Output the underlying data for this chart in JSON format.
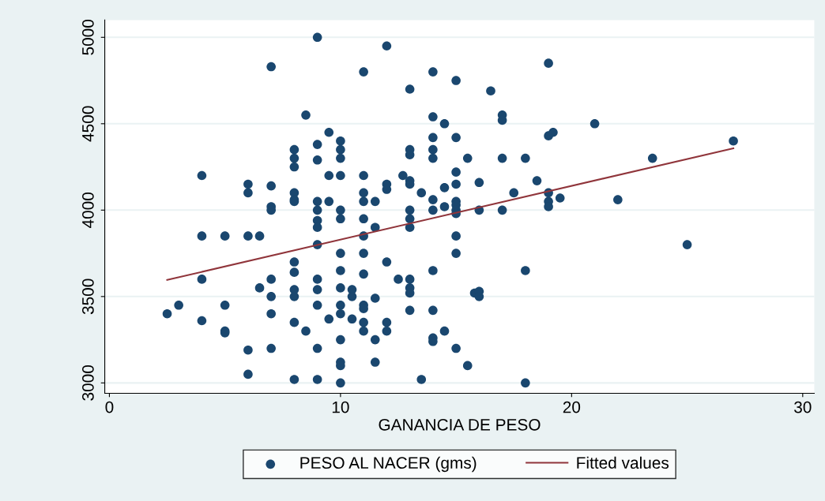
{
  "chart_data": {
    "type": "scatter",
    "xlabel": "GANANCIA DE PESO",
    "xlim": [
      -0.2,
      30.5
    ],
    "ylim": [
      2940,
      5100
    ],
    "xticks": [
      0,
      10,
      20,
      30
    ],
    "yticks": [
      3000,
      3500,
      4000,
      4500,
      5000
    ],
    "grid": "y",
    "legend": "bottom",
    "marker": "circle",
    "series": [
      {
        "name": "PESO AL NACER (gms)",
        "color": "#1a476f",
        "x": [
          2.5,
          3,
          4,
          4,
          4,
          4,
          5,
          5,
          5,
          5,
          6,
          6,
          6,
          6,
          6,
          6.5,
          6.5,
          7,
          7,
          7,
          7,
          7,
          7,
          7,
          7,
          8,
          8,
          8,
          8,
          8,
          8,
          8,
          8,
          8,
          8,
          8,
          8,
          8.5,
          8.5,
          9,
          9,
          9,
          9,
          9,
          9,
          9,
          9,
          9,
          9,
          9,
          9,
          9,
          9.5,
          9.5,
          9.5,
          9.5,
          10,
          10,
          10,
          10,
          10,
          10,
          10,
          10,
          10,
          10,
          10,
          10,
          10,
          10,
          10,
          10.5,
          10.5,
          10.5,
          11,
          11,
          11,
          11,
          11,
          11,
          11,
          11,
          11,
          11,
          11,
          11,
          11.5,
          11.5,
          11.5,
          11.5,
          11.5,
          12,
          12,
          12,
          12,
          12,
          12,
          12.5,
          12.7,
          13,
          13,
          13,
          13,
          13,
          13,
          13,
          13,
          13,
          13,
          13,
          13,
          13.5,
          13.5,
          14,
          14,
          14,
          14,
          14,
          14,
          14,
          14,
          14,
          14,
          14,
          14.5,
          14.5,
          14.5,
          14.5,
          15,
          15,
          15,
          15,
          15,
          15,
          15,
          15,
          15,
          15,
          15,
          15.5,
          15.5,
          15.8,
          16,
          16,
          16,
          16,
          16.5,
          17,
          17,
          17,
          17,
          17.5,
          18,
          18,
          18,
          18.5,
          19,
          19,
          19,
          19,
          19,
          19.2,
          19.5,
          21,
          22,
          23.5,
          25,
          27
        ],
        "values": [
          3400,
          3450,
          4200,
          3850,
          3600,
          3360,
          3850,
          3450,
          3300,
          3290,
          4150,
          4100,
          3850,
          3190,
          3050,
          3850,
          3550,
          4830,
          4140,
          4020,
          4000,
          3600,
          3500,
          3400,
          3200,
          4350,
          4300,
          4250,
          4100,
          4060,
          4050,
          3700,
          3640,
          3540,
          3500,
          3350,
          3020,
          4550,
          3300,
          5000,
          4380,
          4290,
          4050,
          4000,
          3940,
          3900,
          3800,
          3600,
          3540,
          3450,
          3200,
          3020,
          4450,
          4200,
          4050,
          3370,
          4400,
          4350,
          4300,
          4200,
          4000,
          3950,
          3750,
          3650,
          3550,
          3450,
          3400,
          3250,
          3120,
          3100,
          3000,
          3540,
          3500,
          3370,
          4800,
          4200,
          4100,
          4050,
          3950,
          3850,
          3750,
          3630,
          3450,
          3430,
          3350,
          3300,
          4050,
          3900,
          3490,
          3250,
          3120,
          4950,
          4150,
          4120,
          3700,
          3350,
          3300,
          3600,
          4200,
          4700,
          4350,
          4320,
          4170,
          4150,
          4000,
          3950,
          3900,
          3600,
          3550,
          3520,
          3420,
          4100,
          3020,
          4800,
          4540,
          4420,
          4350,
          4300,
          4060,
          4000,
          3650,
          3420,
          3260,
          3240,
          4500,
          4130,
          4020,
          3300,
          4750,
          4420,
          4220,
          4150,
          4050,
          4030,
          4000,
          3980,
          3850,
          3750,
          3200,
          4300,
          3100,
          3520,
          4160,
          4000,
          3530,
          3500,
          4690,
          4550,
          4520,
          4300,
          4000,
          4100,
          4300,
          3650,
          3000,
          4170,
          4850,
          4430,
          4100,
          4050,
          4020,
          4450,
          4070,
          4500,
          4060,
          4300,
          3800,
          4400
        ]
      },
      {
        "name": "Fitted values",
        "type": "line",
        "color": "#90353b",
        "marker": "none",
        "x": [
          2.5,
          27
        ],
        "values": [
          3596,
          4358
        ]
      }
    ]
  }
}
